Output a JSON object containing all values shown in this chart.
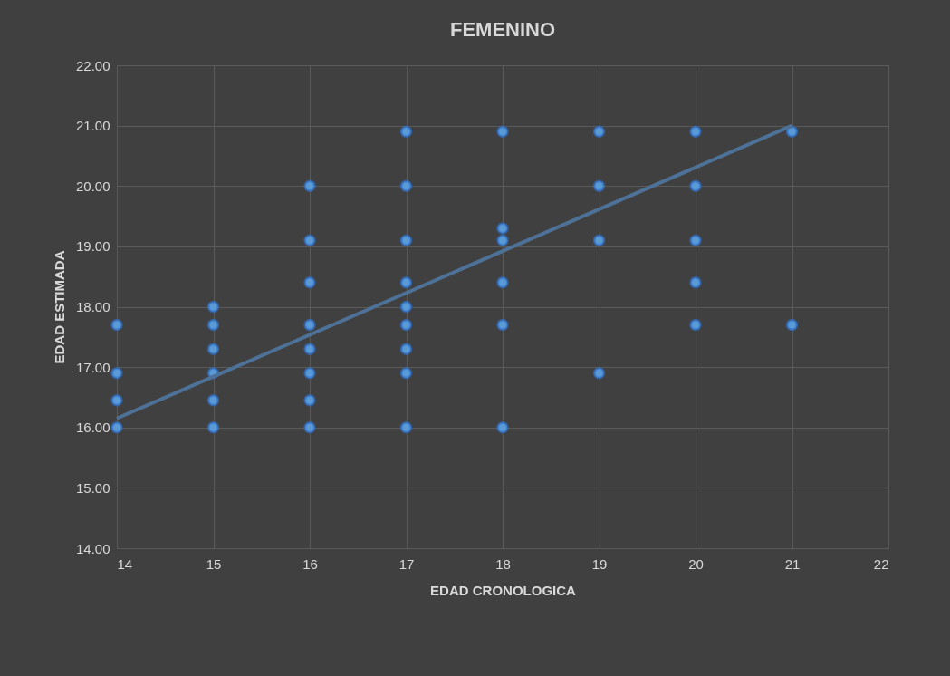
{
  "chart_data": {
    "type": "scatter",
    "title": "FEMENINO",
    "xlabel": "EDAD CRONOLOGICA",
    "ylabel": "EDAD ESTIMADA",
    "xlim": [
      14,
      22
    ],
    "xticks": [
      14,
      15,
      16,
      17,
      18,
      19,
      20,
      21,
      22
    ],
    "ylim": [
      14,
      22
    ],
    "yticks": [
      {
        "value": 14,
        "label": "14.00"
      },
      {
        "value": 15,
        "label": "15.00"
      },
      {
        "value": 16,
        "label": "16.00"
      },
      {
        "value": 17,
        "label": "17.00"
      },
      {
        "value": 18,
        "label": "18.00"
      },
      {
        "value": 19,
        "label": "19.00"
      },
      {
        "value": 20,
        "label": "20.00"
      },
      {
        "value": 21,
        "label": "21.00"
      },
      {
        "value": 22,
        "label": "22.00"
      }
    ],
    "grid": true,
    "series": [
      {
        "color": "#5b9bd5",
        "marker": "circle",
        "x": [
          14,
          14,
          14,
          14,
          15,
          15,
          15,
          15,
          15,
          15,
          16,
          16,
          16,
          16,
          16,
          16,
          16,
          16,
          17,
          17,
          17,
          17,
          17,
          17,
          17,
          17,
          17,
          18,
          18,
          18,
          18,
          18,
          18,
          19,
          19,
          19,
          19,
          20,
          20,
          20,
          20,
          20,
          21,
          21
        ],
        "values": [
          17.7,
          16.9,
          16.45,
          16.0,
          18.0,
          17.7,
          17.3,
          16.9,
          16.45,
          16.0,
          20.0,
          19.1,
          18.4,
          17.7,
          17.3,
          16.9,
          16.45,
          16.0,
          20.9,
          20.0,
          19.1,
          18.4,
          18.0,
          17.7,
          17.3,
          16.9,
          16.0,
          20.9,
          19.3,
          19.1,
          18.4,
          17.7,
          16.0,
          20.9,
          20.0,
          19.1,
          16.9,
          20.9,
          20.0,
          19.1,
          18.4,
          17.7,
          20.9,
          17.7
        ]
      },
      {
        "type": "line",
        "color": "#4e7197",
        "x": [
          14,
          21
        ],
        "values": [
          16.15,
          21.0
        ]
      }
    ]
  }
}
